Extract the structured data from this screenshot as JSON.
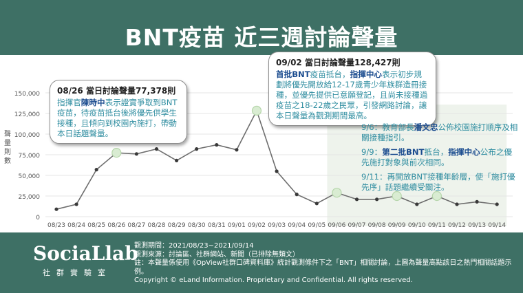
{
  "page": {
    "title": "BNT疫苗 近三週討論聲量"
  },
  "chart_data": {
    "type": "line",
    "x": [
      "08/23",
      "08/24",
      "08/25",
      "08/26",
      "08/27",
      "08/28",
      "08/29",
      "08/30",
      "08/31",
      "09/01",
      "09/02",
      "09/03",
      "09/04",
      "09/05",
      "09/06",
      "09/07",
      "09/08",
      "09/09",
      "09/10",
      "09/11",
      "09/12",
      "09/13",
      "09/14"
    ],
    "series": [
      {
        "values": [
          9000,
          15000,
          57000,
          77378,
          76000,
          82000,
          68000,
          82000,
          87000,
          81000,
          128427,
          55000,
          27000,
          16000,
          29000,
          21000,
          21000,
          25000,
          15000,
          25000,
          15000,
          18000,
          15000
        ]
      }
    ],
    "yticks": [
      "0",
      "25,000",
      "50,000",
      "75,000",
      "100,000",
      "125,000",
      "150,000"
    ],
    "ylim": [
      0,
      150000
    ],
    "ylabel": "聲量則數",
    "highlighted_points": [
      "08/26",
      "09/02",
      "09/06",
      "09/09",
      "09/11"
    ],
    "shaded_range": [
      "09/06",
      "09/14"
    ],
    "line_color": "#6e6e6e",
    "marker_color": "#d9ecd2",
    "marker_stroke": "#b6d6ab",
    "shade_color": "#eef3ec"
  },
  "callouts": {
    "c1": {
      "head": "08/26 當日討論聲量77,378則",
      "parts": [
        {
          "t": "指揮官"
        },
        {
          "t": "陳時中",
          "b": true
        },
        {
          "t": "表示證實爭取到BNT疫苗，待疫苗抵台後將優先供學生接種，且傾向到校園內施打，帶動本日話題聲量。"
        }
      ]
    },
    "c2": {
      "head": "09/02 當日討論聲量128,427則",
      "parts": [
        {
          "t": "首批BNT",
          "b": true
        },
        {
          "t": "疫苗抵台，"
        },
        {
          "t": "指揮中心",
          "b": true
        },
        {
          "t": "表示初步規劃將優先開放給12-17歲青少年族群造冊接種，並優先提供已意願登記，且尚未接種過疫苗之18-22歲之民眾，引發網路討論，讓本日聲量為觀測期間最高。"
        }
      ]
    }
  },
  "side_notes": [
    {
      "parts": [
        {
          "t": "9/6：教育部長"
        },
        {
          "t": "潘文忠",
          "b": true
        },
        {
          "t": "公佈校園施打順序及相關接種指引。"
        }
      ]
    },
    {
      "parts": [
        {
          "t": "9/9："
        },
        {
          "t": "第二批BNT",
          "b": true
        },
        {
          "t": "抵台，"
        },
        {
          "t": "指揮中心",
          "b": true
        },
        {
          "t": "公布之優先施打對象與前次相同。"
        }
      ]
    },
    {
      "parts": [
        {
          "t": "9/11：再開放BNT接種年齡層，使「施打優先序」話題繼續受關注。"
        }
      ]
    }
  ],
  "footer": {
    "logo": "SociaLlab",
    "logo_sub": "社群實驗室",
    "lines": [
      "觀測期間：2021/08/23~2021/09/14",
      "觀測來源：討論區、社群網站、新聞（已排除無類文）",
      "註：本聲量係使用《OpView社群口碑資料庫》統計觀測條件下之「BNT」相關討論，上圖為聲量高點該日之熱門相關話題示例。",
      "Copyright © eLand Information. Proprietary and Confidential. All rights reserved."
    ]
  }
}
